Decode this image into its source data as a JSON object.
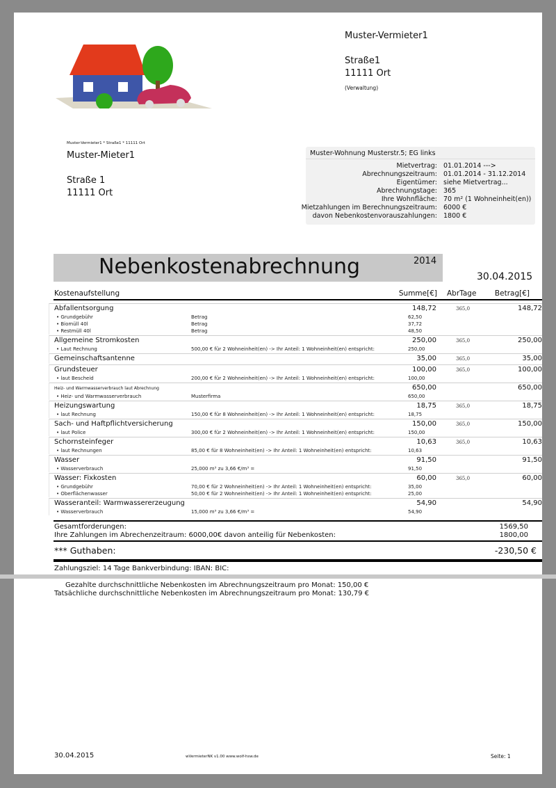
{
  "landlord": {
    "name": "Muster-Vermieter1",
    "street": "Straße1",
    "city": "11111 Ort",
    "note": "(Verwaltung)"
  },
  "sender_line": "Muster-Vermieter1 * Straße1 * 11111 Ort",
  "tenant": {
    "name": "Muster-Mieter1",
    "street": "Straße 1",
    "city": "11111 Ort"
  },
  "info": {
    "header": "Muster-Wohnung Musterstr.5; EG links",
    "rows": [
      {
        "k": "Mietvertrag:",
        "v": "01.01.2014 --->"
      },
      {
        "k": "Abrechnungszeitraum:",
        "v": "01.01.2014 - 31.12.2014"
      },
      {
        "k": "Eigentümer:",
        "v": "siehe Mietvertrag..."
      },
      {
        "k": "Abrechnungstage:",
        "v": "365"
      },
      {
        "k": "Ihre Wohnfläche:",
        "v": "70 m² (1 Wohneinheit(en))"
      },
      {
        "k": "Mietzahlungen im Berechnungszeitraum:",
        "v": "6000 €"
      },
      {
        "k": "davon Nebenkostenvorauszahlungen:",
        "v": "1800 €"
      }
    ]
  },
  "title": "Nebenkostenabrechnung",
  "year": "2014",
  "date": "30.04.2015",
  "columns": {
    "name": "Kostenaufstellung",
    "sum": "Summe[€]",
    "days": "AbrTage",
    "amount": "Betrag[€]"
  },
  "groups": [
    {
      "name": "Abfallentsorgung",
      "sum": "148,72",
      "days": "365,0",
      "amount": "148,72",
      "items": [
        {
          "n": "•  Grundgebühr",
          "d": "Betrag",
          "a": "62,50"
        },
        {
          "n": "• Biomüll 40l",
          "d": "Betrag",
          "a": "37,72"
        },
        {
          "n": "• Restmüll 40l",
          "d": "Betrag",
          "a": "48,50"
        }
      ]
    },
    {
      "name": "Allgemeine Stromkosten",
      "sum": "250,00",
      "days": "365,0",
      "amount": "250,00",
      "items": [
        {
          "n": "• Laut Rechnung",
          "d": "500,00 €   für 2 Wohneinheit(en)  ->  Ihr Anteil: 1 Wohneinheit(en) entspricht:",
          "a": "250,00"
        }
      ]
    },
    {
      "name": "Gemeinschaftsantenne",
      "sum": "35,00",
      "days": "365,0",
      "amount": "35,00",
      "items": []
    },
    {
      "name": "Grundsteuer",
      "sum": "100,00",
      "days": "365,0",
      "amount": "100,00",
      "items": [
        {
          "n": "• laut Bescheid",
          "d": "200,00 €   für 2 Wohneinheit(en)  ->  Ihr Anteil: 1 Wohneinheit(en) entspricht:",
          "a": "100,00"
        }
      ]
    },
    {
      "name": "Heiz- und Warmwasserverbrauch laut Abrechnung",
      "small": true,
      "sum": "650,00",
      "days": "",
      "amount": "650,00",
      "items": [
        {
          "n": "• Heiz- und Warmwasserverbrauch",
          "d": "Musterfirma",
          "a": "650,00"
        }
      ]
    },
    {
      "name": "Heizungswartung",
      "sum": "18,75",
      "days": "365,0",
      "amount": "18,75",
      "items": [
        {
          "n": "• laut Rechnung",
          "d": "150,00 €   für 8 Wohneinheit(en)  ->  Ihr Anteil: 1 Wohneinheit(en) entspricht:",
          "a": "18,75"
        }
      ]
    },
    {
      "name": "Sach- und Haftpflichtversicherung",
      "sum": "150,00",
      "days": "365,0",
      "amount": "150,00",
      "items": [
        {
          "n": "• laut Police",
          "d": "300,00 €   für 2 Wohneinheit(en)  ->  Ihr Anteil: 1 Wohneinheit(en) entspricht:",
          "a": "150,00"
        }
      ]
    },
    {
      "name": "Schornsteinfeger",
      "sum": "10,63",
      "days": "365,0",
      "amount": "10,63",
      "items": [
        {
          "n": "• laut Rechnungen",
          "d": "85,00 €   für 8 Wohneinheit(en)  ->  Ihr Anteil: 1 Wohneinheit(en) entspricht:",
          "a": "10,63"
        }
      ]
    },
    {
      "name": "Wasser",
      "sum": "91,50",
      "days": "",
      "amount": "91,50",
      "items": [
        {
          "n": "• Wasserverbrauch",
          "d": "25,000 m³    zu   3,66 €/m³   =",
          "a": "91,50"
        }
      ]
    },
    {
      "name": "Wasser: Fixkosten",
      "sum": "60,00",
      "days": "365,0",
      "amount": "60,00",
      "items": [
        {
          "n": "• Grundgebühr",
          "d": "70,00 €   für 2 Wohneinheit(en)  ->  Ihr Anteil: 1 Wohneinheit(en) entspricht:",
          "a": "35,00"
        },
        {
          "n": "• Oberflächenwasser",
          "d": "50,00 €   für 2 Wohneinheit(en)  ->  Ihr Anteil: 1 Wohneinheit(en) entspricht:",
          "a": "25,00"
        }
      ]
    },
    {
      "name": "Wasseranteil: Warmwassererzeugung",
      "sum": "54,90",
      "days": "",
      "amount": "54,90",
      "items": [
        {
          "n": "• Wasserverbrauch",
          "d": "15,000 m³    zu   3,66 €/m³   =",
          "a": "54,90"
        }
      ]
    }
  ],
  "totals": {
    "claims_label": "Gesamtforderungen:",
    "claims": "1569,50",
    "payments_label": "Ihre Zahlungen im Abrechenzeitraum: 6000,00€  davon anteilig für Nebenkosten:",
    "payments": "1800,00",
    "balance_label": "*** Guthaben:",
    "balance": "-230,50 €"
  },
  "payment_terms": "Zahlungsziel: 14 Tage   Bankverbindung:  IBAN:   BIC:",
  "avg_paid": "Gezahlte durchschnittliche Nebenkosten im Abrechnungszeitraum pro Monat:  150,00 €",
  "avg_actual": "Tatsächliche durchschnittliche Nebenkosten im Abrechnungszeitraum pro Monat:  130,79 €",
  "footer": {
    "date": "30.04.2015",
    "software": "wVermieterNK v1.00  www.wolf-hsw.de",
    "page": "Seite: 1"
  }
}
